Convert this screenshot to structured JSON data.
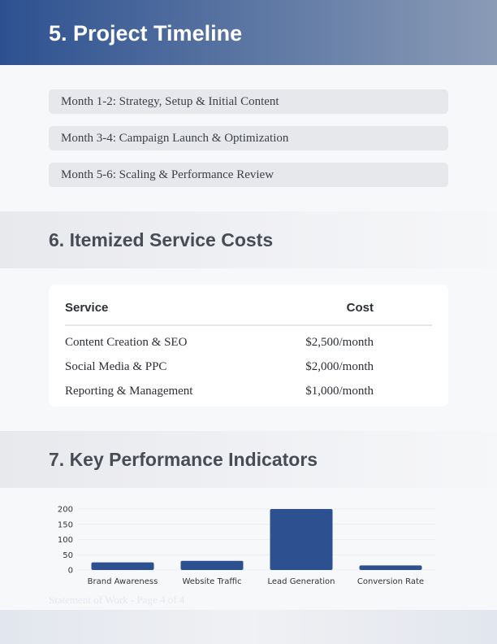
{
  "timeline": {
    "title": "5. Project Timeline",
    "items": [
      "Month 1-2: Strategy, Setup & Initial Content",
      "Month 3-4: Campaign Launch & Optimization",
      "Month 5-6: Scaling & Performance Review"
    ]
  },
  "costs": {
    "title": "6. Itemized Service Costs",
    "headers": [
      "Service",
      "Cost"
    ],
    "rows": [
      [
        "Content Creation & SEO",
        "$2,500/month"
      ],
      [
        "Social Media & PPC",
        "$2,000/month"
      ],
      [
        "Reporting & Management",
        "$1,000/month"
      ]
    ]
  },
  "kpi": {
    "title": "7. Key Performance Indicators"
  },
  "chart_data": {
    "type": "bar",
    "categories": [
      "Brand Awareness",
      "Website Traffic",
      "Lead Generation",
      "Conversion Rate"
    ],
    "values": [
      25,
      30,
      200,
      15
    ],
    "ylim": [
      0,
      200
    ],
    "yticks": [
      "0",
      "50",
      "100",
      "150",
      "200"
    ],
    "grid": true,
    "color": "#2d5190"
  },
  "footer": "Statement of Work - Page 4 of 4"
}
